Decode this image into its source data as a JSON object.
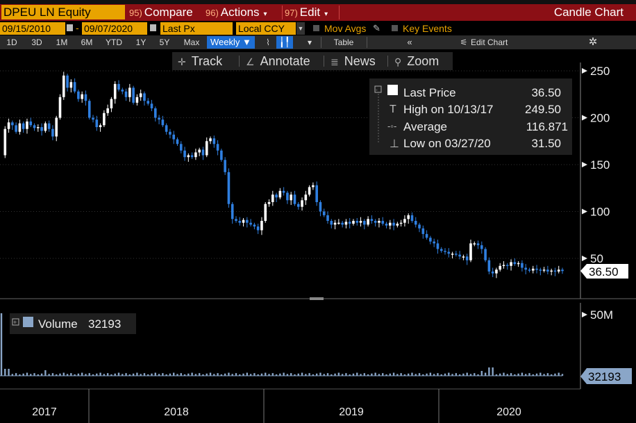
{
  "header": {
    "ticker": "DPEU LN Equity",
    "compare_num": "95)",
    "compare_label": "Compare",
    "actions_num": "96)",
    "actions_label": "Actions",
    "edit_num": "97)",
    "edit_label": "Edit",
    "chart_type_label": "Candle Chart"
  },
  "settings": {
    "start_date": "09/15/2010",
    "end_date": "09/07/2020",
    "field": "Last Px",
    "currency": "Local CCY",
    "mov_avgs": "Mov Avgs",
    "key_events": "Key Events"
  },
  "periods": [
    "1D",
    "3D",
    "1M",
    "6M",
    "YTD",
    "1Y",
    "5Y",
    "Max"
  ],
  "frequency": "Weekly",
  "table_label": "Table",
  "edit_chart_label": "Edit Chart",
  "tools": {
    "track": "Track",
    "annotate": "Annotate",
    "news": "News",
    "zoom": "Zoom"
  },
  "legend": {
    "last_price_label": "Last Price",
    "last_price_value": "36.50",
    "high_label": "High on 10/13/17",
    "high_value": "249.50",
    "average_label": "Average",
    "average_value": "116.871",
    "low_label": "Low on 03/27/20",
    "low_value": "31.50"
  },
  "price_tag": "36.50",
  "volume_legend": {
    "label": "Volume",
    "value": "32193"
  },
  "volume_tag": "32193",
  "colors": {
    "accent": "#e8a300",
    "header_red": "#8b0f15",
    "up_candle": "#ffffff",
    "down_candle": "#2f7fe0",
    "volume_bar": "#8aa6c8"
  },
  "chart_data": {
    "type": "candlestick",
    "frequency": "weekly",
    "price_axis": {
      "ylim": [
        20,
        255
      ],
      "ticks": [
        50,
        100,
        150,
        200,
        250
      ]
    },
    "volume_axis": {
      "ticks": [
        "50M"
      ]
    },
    "x_axis": {
      "ticks": [
        "2017",
        "2018",
        "2019",
        "2020"
      ]
    },
    "close_path": [
      [
        0.0,
        160
      ],
      [
        1,
        188
      ],
      [
        2,
        195
      ],
      [
        3,
        192
      ],
      [
        4,
        185
      ],
      [
        5,
        194
      ],
      [
        6,
        188
      ],
      [
        7,
        196
      ],
      [
        8,
        192
      ],
      [
        9,
        189
      ],
      [
        10,
        190
      ],
      [
        11,
        186
      ],
      [
        12,
        194
      ],
      [
        13,
        188
      ],
      [
        14,
        180
      ],
      [
        15,
        200
      ],
      [
        16,
        222
      ],
      [
        17,
        245
      ],
      [
        18,
        232
      ],
      [
        19,
        238
      ],
      [
        20,
        228
      ],
      [
        21,
        220
      ],
      [
        22,
        225
      ],
      [
        23,
        218
      ],
      [
        24,
        200
      ],
      [
        25,
        198
      ],
      [
        26,
        190
      ],
      [
        27,
        192
      ],
      [
        28,
        205
      ],
      [
        29,
        210
      ],
      [
        30,
        220
      ],
      [
        31,
        236
      ],
      [
        32,
        230
      ],
      [
        33,
        228
      ],
      [
        34,
        222
      ],
      [
        35,
        232
      ],
      [
        36,
        216
      ],
      [
        37,
        222
      ],
      [
        38,
        226
      ],
      [
        39,
        218
      ],
      [
        40,
        215
      ],
      [
        41,
        210
      ],
      [
        42,
        200
      ],
      [
        43,
        198
      ],
      [
        44,
        192
      ],
      [
        45,
        185
      ],
      [
        46,
        182
      ],
      [
        47,
        177
      ],
      [
        48,
        172
      ],
      [
        49,
        165
      ],
      [
        50,
        158
      ],
      [
        51,
        160
      ],
      [
        52,
        158
      ],
      [
        53,
        163
      ],
      [
        54,
        166
      ],
      [
        55,
        160
      ],
      [
        56,
        175
      ],
      [
        57,
        178
      ],
      [
        58,
        172
      ],
      [
        59,
        165
      ],
      [
        60,
        155
      ],
      [
        61,
        142
      ],
      [
        62,
        108
      ],
      [
        63,
        92
      ],
      [
        64,
        90
      ],
      [
        65,
        88
      ],
      [
        66,
        91
      ],
      [
        67,
        88
      ],
      [
        68,
        86
      ],
      [
        69,
        84
      ],
      [
        70,
        80
      ],
      [
        71,
        90
      ],
      [
        72,
        108
      ],
      [
        73,
        110
      ],
      [
        74,
        118
      ],
      [
        75,
        115
      ],
      [
        76,
        122
      ],
      [
        77,
        120
      ],
      [
        78,
        112
      ],
      [
        79,
        118
      ],
      [
        80,
        108
      ],
      [
        81,
        105
      ],
      [
        82,
        112
      ],
      [
        83,
        118
      ],
      [
        84,
        126
      ],
      [
        85,
        128
      ],
      [
        86,
        110
      ],
      [
        87,
        100
      ],
      [
        88,
        96
      ],
      [
        89,
        90
      ],
      [
        90,
        86
      ],
      [
        91,
        88
      ],
      [
        92,
        88
      ],
      [
        93,
        86
      ],
      [
        94,
        89
      ],
      [
        95,
        87
      ],
      [
        96,
        90
      ],
      [
        97,
        88
      ],
      [
        98,
        90
      ],
      [
        99,
        86
      ],
      [
        100,
        92
      ],
      [
        101,
        90
      ],
      [
        102,
        88
      ],
      [
        103,
        90
      ],
      [
        104,
        87
      ],
      [
        105,
        85
      ],
      [
        106,
        88
      ],
      [
        107,
        85
      ],
      [
        108,
        87
      ],
      [
        109,
        88
      ],
      [
        110,
        92
      ],
      [
        111,
        96
      ],
      [
        112,
        90
      ],
      [
        113,
        86
      ],
      [
        114,
        82
      ],
      [
        115,
        76
      ],
      [
        116,
        72
      ],
      [
        117,
        68
      ],
      [
        118,
        66
      ],
      [
        119,
        60
      ],
      [
        120,
        58
      ],
      [
        121,
        57
      ],
      [
        122,
        55
      ],
      [
        123,
        55
      ],
      [
        124,
        54
      ],
      [
        125,
        52
      ],
      [
        126,
        52
      ],
      [
        127,
        48
      ],
      [
        128,
        66
      ],
      [
        129,
        66
      ],
      [
        130,
        64
      ],
      [
        131,
        60
      ],
      [
        132,
        48
      ],
      [
        133,
        36
      ],
      [
        134,
        34
      ],
      [
        135,
        38
      ],
      [
        136,
        42
      ],
      [
        137,
        43
      ],
      [
        138,
        42
      ],
      [
        139,
        46
      ],
      [
        140,
        44
      ],
      [
        141,
        45
      ],
      [
        142,
        40
      ],
      [
        143,
        38
      ],
      [
        144,
        37
      ],
      [
        145,
        39
      ],
      [
        146,
        38
      ],
      [
        147,
        37
      ],
      [
        148,
        38
      ],
      [
        149,
        36
      ],
      [
        150,
        37
      ],
      [
        151,
        36
      ],
      [
        152,
        38
      ],
      [
        153,
        36.5
      ]
    ]
  }
}
